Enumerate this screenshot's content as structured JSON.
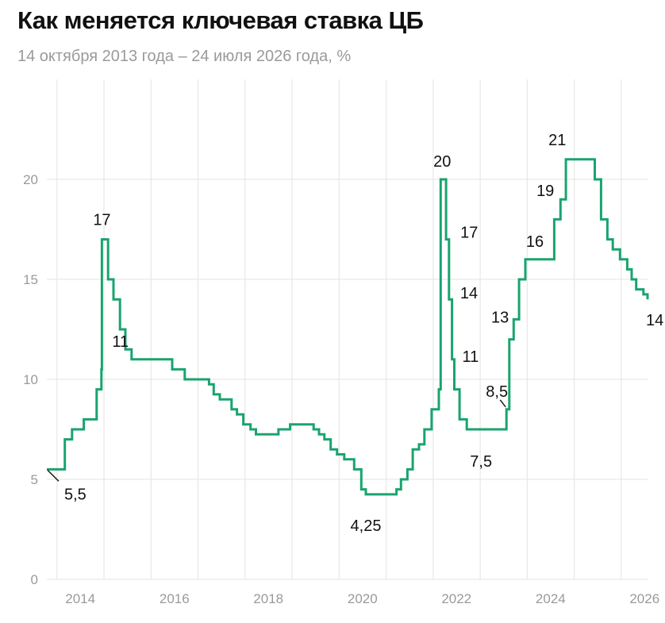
{
  "header": {
    "title": "Как меняется ключевая ставка ЦБ",
    "subtitle": "14 октября 2013 года – 24 июля 2026 года, %"
  },
  "colors": {
    "line": "#1aa36f",
    "grid": "#e3e3e3",
    "tick": "#9a9a9a",
    "text": "#111111"
  },
  "chart_data": {
    "type": "line",
    "step": true,
    "title": "Как меняется ключевая ставка ЦБ",
    "subtitle": "14 октября 2013 года – 24 июля 2026 года, %",
    "xlim": [
      "2013-10-14",
      "2026-07-24"
    ],
    "ylim": [
      0,
      25
    ],
    "grid": true,
    "x_ticks": [
      "2014",
      "2016",
      "2018",
      "2020",
      "2022",
      "2024",
      "2026"
    ],
    "y_ticks": [
      "0",
      "5",
      "10",
      "15",
      "20"
    ],
    "series": [
      {
        "x": [
          "2013-10-14",
          "2014-03-03",
          "2014-04-28",
          "2014-07-28",
          "2014-11-05",
          "2014-12-12",
          "2014-12-16",
          "2015-02-02",
          "2015-03-16",
          "2015-05-05",
          "2015-06-16",
          "2015-08-03",
          "2016-06-14",
          "2016-09-19",
          "2017-03-27",
          "2017-05-02",
          "2017-06-19",
          "2017-09-18",
          "2017-10-30",
          "2017-12-18",
          "2018-02-12",
          "2018-03-26",
          "2018-09-17",
          "2018-12-17",
          "2019-06-17",
          "2019-07-29",
          "2019-09-09",
          "2019-10-28",
          "2019-12-16",
          "2020-02-10",
          "2020-04-27",
          "2020-06-22",
          "2020-07-27",
          "2021-03-22",
          "2021-04-26",
          "2021-06-15",
          "2021-07-26",
          "2021-09-13",
          "2021-10-25",
          "2021-12-20",
          "2022-02-14",
          "2022-02-28",
          "2022-04-11",
          "2022-05-04",
          "2022-05-27",
          "2022-06-14",
          "2022-07-25",
          "2022-09-19",
          "2023-07-24",
          "2023-08-15",
          "2023-09-18",
          "2023-10-30",
          "2023-12-18",
          "2024-07-29",
          "2024-09-16",
          "2024-10-28",
          "2025-06-09",
          "2025-07-28",
          "2025-09-15",
          "2025-10-27",
          "2025-12-22",
          "2026-02-16",
          "2026-03-23",
          "2026-04-27",
          "2026-06-22",
          "2026-07-24"
        ],
        "y": [
          5.5,
          7,
          7.5,
          8,
          9.5,
          10.5,
          17,
          15,
          14,
          12.5,
          11.5,
          11,
          10.5,
          10,
          9.75,
          9.25,
          9,
          8.5,
          8.25,
          7.75,
          7.5,
          7.25,
          7.5,
          7.75,
          7.5,
          7.25,
          7,
          6.5,
          6.25,
          6,
          5.5,
          4.5,
          4.25,
          4.5,
          5,
          5.5,
          6.5,
          6.75,
          7.5,
          8.5,
          9.5,
          20,
          17,
          14,
          11,
          9.5,
          8,
          7.5,
          8.5,
          12,
          13,
          15,
          16,
          18,
          19,
          21,
          20,
          18,
          17,
          16.5,
          16,
          15.5,
          15,
          14.5,
          14.25,
          14
        ]
      }
    ],
    "annotations": [
      {
        "text": "5,5",
        "x": "2013-10-14",
        "y": 5.5
      },
      {
        "text": "17",
        "x": "2014-12-16",
        "y": 17
      },
      {
        "text": "11",
        "x": "2015-08-03",
        "y": 11
      },
      {
        "text": "4,25",
        "x": "2020-07-27",
        "y": 4.25
      },
      {
        "text": "20",
        "x": "2022-02-28",
        "y": 20
      },
      {
        "text": "17",
        "x": "2022-04-11",
        "y": 17
      },
      {
        "text": "14",
        "x": "2022-05-04",
        "y": 14
      },
      {
        "text": "11",
        "x": "2022-05-27",
        "y": 11
      },
      {
        "text": "7,5",
        "x": "2022-09-19",
        "y": 7.5
      },
      {
        "text": "8,5",
        "x": "2023-07-24",
        "y": 8.5
      },
      {
        "text": "13",
        "x": "2023-09-18",
        "y": 13
      },
      {
        "text": "16",
        "x": "2023-12-18",
        "y": 16
      },
      {
        "text": "19",
        "x": "2024-09-16",
        "y": 19
      },
      {
        "text": "21",
        "x": "2024-10-28",
        "y": 21
      },
      {
        "text": "14",
        "x": "2026-07-24",
        "y": 14
      }
    ]
  }
}
